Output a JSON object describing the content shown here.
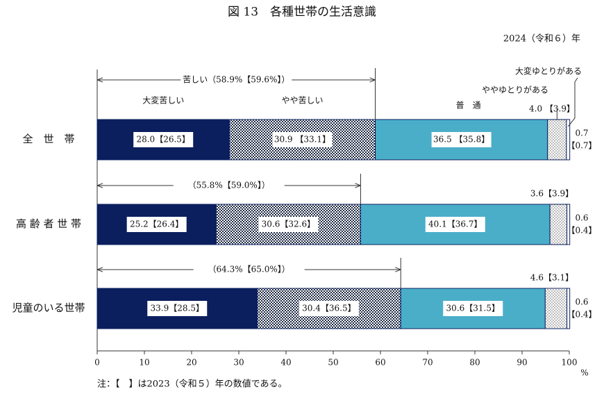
{
  "chart_data": {
    "type": "stacked-bar",
    "orientation": "horizontal",
    "title": "図 13　各種世帯の生活意識",
    "subtitle": "2024（令和６）年",
    "note": "注：【　】は2023（令和５）年の数値である。",
    "x_unit": "%",
    "categories": [
      "全　世　帯",
      "高 齢 者 世 帯",
      "児童のいる世帯"
    ],
    "series": [
      {
        "name": "大変苦しい",
        "color": "#0b1f5e",
        "pattern": "solid",
        "values": [
          28.0,
          25.2,
          33.9
        ],
        "value_labels": [
          "28.0【26.5】",
          "25.2【26.4】",
          "33.9【28.5】"
        ]
      },
      {
        "name": "やや苦しい",
        "color": "#1f2a44",
        "pattern": "checker",
        "values": [
          30.9,
          30.6,
          30.4
        ],
        "value_labels": [
          "30.9 【33.1】",
          "30.6【32.6】",
          "30.4【36.5】"
        ]
      },
      {
        "name": "普　通",
        "color": "#4aaec9",
        "pattern": "solid",
        "values": [
          36.5,
          40.1,
          30.6
        ],
        "value_labels": [
          "36.5 【35.8】",
          "40.1【36.7】",
          "30.6【31.5】"
        ]
      },
      {
        "name": "ややゆとりがある",
        "color": "#555555",
        "pattern": "dots",
        "values": [
          4.0,
          3.6,
          4.6
        ],
        "value_labels": [
          "4.0 【3.9】",
          "3.6【3.9】",
          "4.6【3.1】"
        ]
      },
      {
        "name": "大変ゆとりがある",
        "color": "#ffffff",
        "pattern": "solid",
        "values": [
          0.7,
          0.6,
          0.6
        ],
        "value_labels": [
          [
            "0.7",
            "【0.7】"
          ],
          [
            "0.6",
            "【0.4】"
          ],
          [
            "0.6",
            "【0.4】"
          ]
        ]
      }
    ],
    "group_labels": [
      "苦しい（58.9%【59.6%】）",
      "（55.8%【59.0%】）",
      "（64.3%【65.0%】）"
    ],
    "xlim": [
      0,
      100
    ],
    "xticks": [
      0,
      10,
      20,
      30,
      40,
      50,
      60,
      70,
      80,
      90,
      100
    ]
  }
}
